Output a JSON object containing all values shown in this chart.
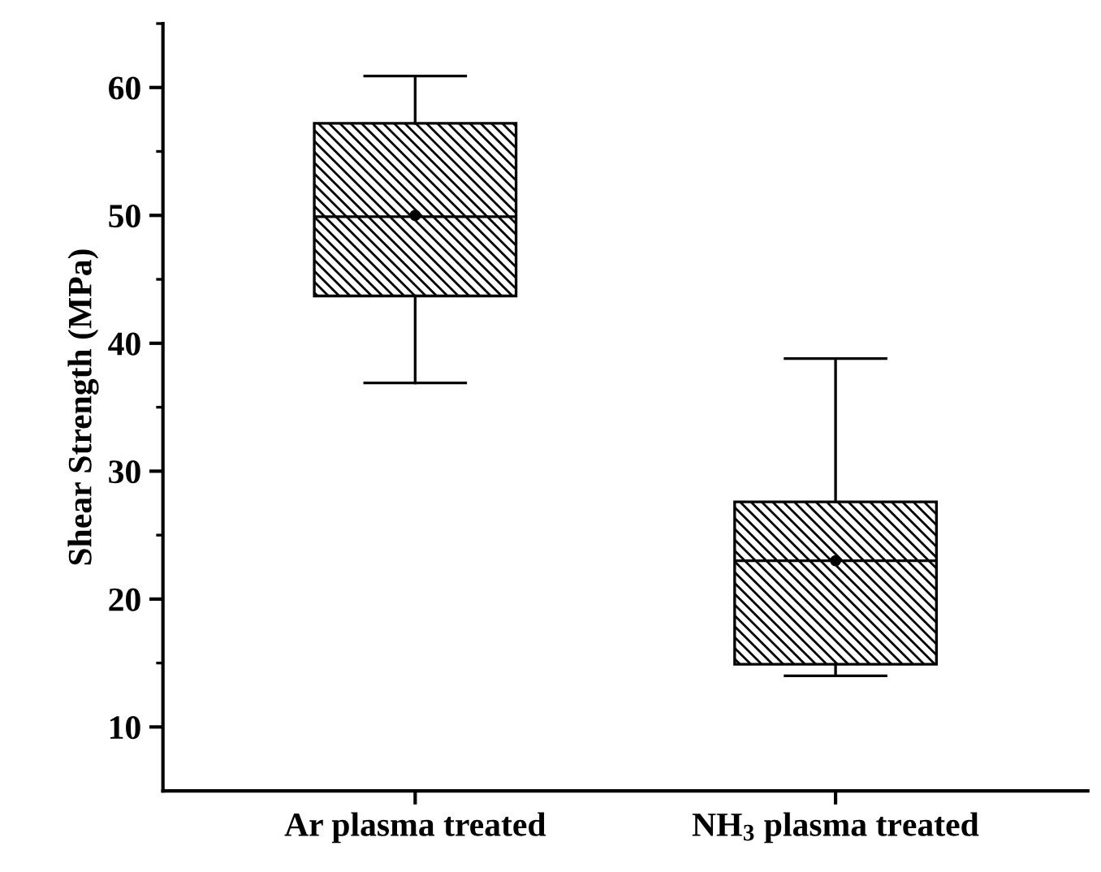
{
  "chart_data": {
    "type": "box",
    "ylabel": "Shear Strength (MPa)",
    "categories": [
      "Ar plasma treated",
      "NH$_{3}$ plasma treated"
    ],
    "boxes": [
      {
        "low": 36.9,
        "q1": 43.7,
        "median": 49.9,
        "q3": 57.2,
        "high": 60.9,
        "mean": 50.0
      },
      {
        "low": 14.0,
        "q1": 14.9,
        "median": 23.0,
        "q3": 27.6,
        "high": 38.8,
        "mean": 23.0
      }
    ],
    "color": "#000000",
    "ylim": [
      5,
      65
    ],
    "yticks": [
      10,
      {
        "value": 15,
        "label": null
      },
      20,
      {
        "value": 25,
        "label": null
      },
      30,
      {
        "value": 35,
        "label": null
      },
      40,
      {
        "value": 45,
        "label": null
      },
      50,
      {
        "value": 55,
        "label": null
      },
      60,
      {
        "value": 65,
        "label": null
      }
    ],
    "grid": false,
    "legend": false,
    "marker": "circle"
  }
}
